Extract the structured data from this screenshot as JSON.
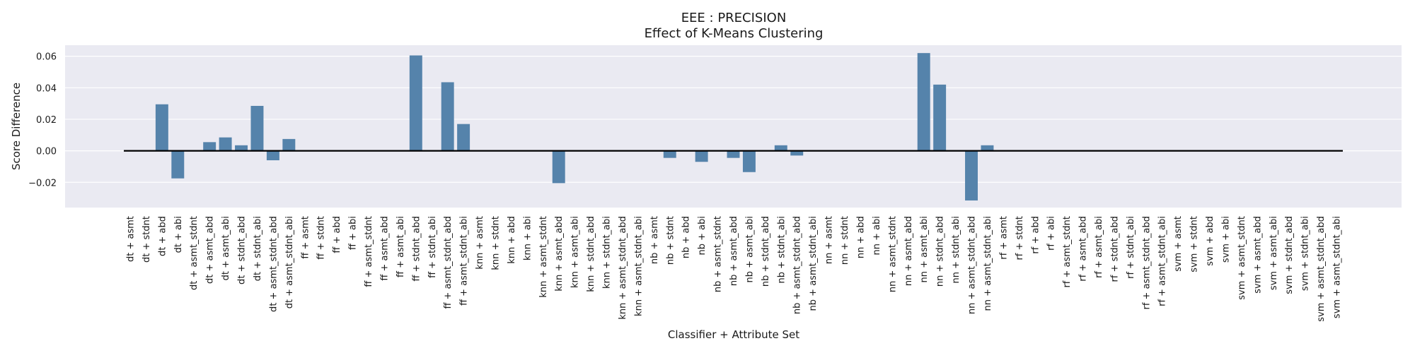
{
  "chart_data": {
    "type": "bar",
    "title": "EEE : PRECISION",
    "subtitle": "Effect of K-Means Clustering",
    "xlabel": "Classifier + Attribute Set",
    "ylabel": "Score Difference",
    "ylim": [
      -0.036,
      0.067
    ],
    "yticks": [
      -0.02,
      0.0,
      0.02,
      0.04,
      0.06
    ],
    "ytick_labels": [
      "−0.02",
      "0.00",
      "0.02",
      "0.04",
      "0.06"
    ],
    "grid": true,
    "colors": {
      "bar": "#5583ab",
      "plot_bg": "#eaeaf2",
      "grid": "#ffffff",
      "zero_line": "#000000"
    },
    "categories": [
      "dt + asmt",
      "dt + stdnt",
      "dt + abd",
      "dt + abi",
      "dt + asmt_stdnt",
      "dt + asmt_abd",
      "dt + asmt_abi",
      "dt + stdnt_abd",
      "dt + stdnt_abi",
      "dt + asmt_stdnt_abd",
      "dt + asmt_stdnt_abi",
      "ff + asmt",
      "ff + stdnt",
      "ff + abd",
      "ff + abi",
      "ff + asmt_stdnt",
      "ff + asmt_abd",
      "ff + asmt_abi",
      "ff + stdnt_abd",
      "ff + stdnt_abi",
      "ff + asmt_stdnt_abd",
      "ff + asmt_stdnt_abi",
      "knn + asmt",
      "knn + stdnt",
      "knn + abd",
      "knn + abi",
      "knn + asmt_stdnt",
      "knn + asmt_abd",
      "knn + asmt_abi",
      "knn + stdnt_abd",
      "knn + stdnt_abi",
      "knn + asmt_stdnt_abd",
      "knn + asmt_stdnt_abi",
      "nb + asmt",
      "nb + stdnt",
      "nb + abd",
      "nb + abi",
      "nb + asmt_stdnt",
      "nb + asmt_abd",
      "nb + asmt_abi",
      "nb + stdnt_abd",
      "nb + stdnt_abi",
      "nb + asmt_stdnt_abd",
      "nb + asmt_stdnt_abi",
      "nn + asmt",
      "nn + stdnt",
      "nn + abd",
      "nn + abi",
      "nn + asmt_stdnt",
      "nn + asmt_abd",
      "nn + asmt_abi",
      "nn + stdnt_abd",
      "nn + stdnt_abi",
      "nn + asmt_stdnt_abd",
      "nn + asmt_stdnt_abi",
      "rf + asmt",
      "rf + stdnt",
      "rf + abd",
      "rf + abi",
      "rf + asmt_stdnt",
      "rf + asmt_abd",
      "rf + asmt_abi",
      "rf + stdnt_abd",
      "rf + stdnt_abi",
      "rf + asmt_stdnt_abd",
      "rf + asmt_stdnt_abi",
      "svm + asmt",
      "svm + stdnt",
      "svm + abd",
      "svm + abi",
      "svm + asmt_stdnt",
      "svm + asmt_abd",
      "svm + asmt_abi",
      "svm + stdnt_abd",
      "svm + stdnt_abi",
      "svm + asmt_stdnt_abd",
      "svm + asmt_stdnt_abi"
    ],
    "values": [
      0,
      0,
      0.0295,
      -0.0175,
      0,
      0.0055,
      0.0085,
      0.0035,
      0.0285,
      -0.006,
      0.0075,
      0,
      0,
      0,
      0,
      0,
      0,
      0,
      0.0605,
      0,
      0.0435,
      0.017,
      0,
      0,
      0,
      0,
      0,
      -0.0205,
      0,
      0,
      0,
      0,
      0,
      0,
      -0.0045,
      0,
      -0.007,
      0,
      -0.0045,
      -0.0135,
      0,
      0.0035,
      -0.003,
      0,
      0,
      0,
      0,
      0,
      0,
      0,
      0.062,
      0.042,
      0,
      -0.0315,
      0.0035,
      0,
      0,
      0,
      0,
      0,
      0,
      0,
      0,
      0,
      0,
      0,
      0,
      0,
      0,
      0,
      0,
      0,
      0,
      0,
      0,
      0,
      0
    ]
  }
}
